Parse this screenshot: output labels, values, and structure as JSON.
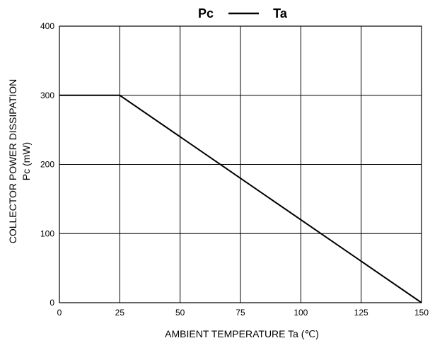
{
  "chart_data": {
    "type": "line",
    "title": {
      "left": "Pc",
      "right": "Ta"
    },
    "xlabel": "AMBIENT TEMPERATURE    Ta   (℃)",
    "ylabel": {
      "line1": "COLLECTOR POWER DISSIPATION",
      "line2": "Pc    (mW)"
    },
    "xlim": [
      0,
      150
    ],
    "ylim": [
      0,
      400
    ],
    "x_ticks": [
      0,
      25,
      50,
      75,
      100,
      125,
      150
    ],
    "y_ticks": [
      0,
      100,
      200,
      300,
      400
    ],
    "grid": true,
    "colors": {
      "line": "#000000",
      "grid": "#000000"
    },
    "series": [
      {
        "x": [
          0,
          25,
          150
        ],
        "y": [
          300,
          300,
          0
        ]
      }
    ]
  }
}
